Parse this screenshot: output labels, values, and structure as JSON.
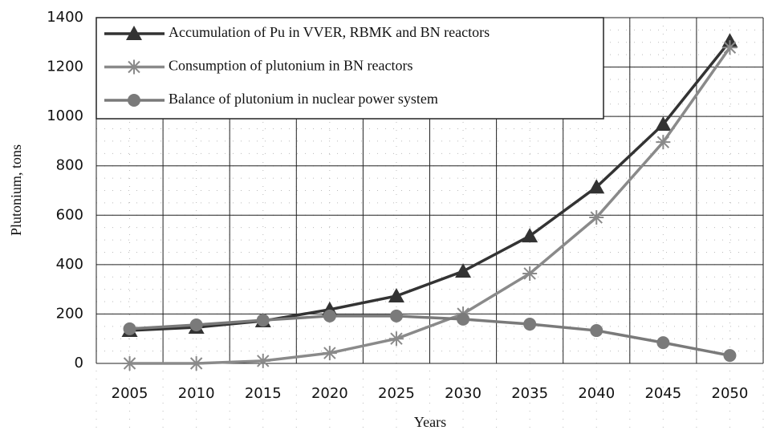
{
  "chart_data": {
    "type": "line",
    "x_label": "Years",
    "y_label": "Plutonium, tons",
    "categories": [
      "2005",
      "2010",
      "2015",
      "2020",
      "2025",
      "2030",
      "2035",
      "2040",
      "2045",
      "2050"
    ],
    "series": [
      {
        "name": "Accumulation of Pu in VVER, RBMK and BN reactors",
        "color": "#333333",
        "marker": "triangle",
        "values": [
          133,
          146,
          172,
          218,
          273,
          373,
          516,
          714,
          968,
          1305
        ]
      },
      {
        "name": "Consumption of plutonium in BN reactors",
        "color": "#8a8a8a",
        "marker": "star",
        "values": [
          0,
          0,
          10,
          42,
          100,
          201,
          364,
          591,
          896,
          1279
        ]
      },
      {
        "name": "Balance of plutonium in nuclear power system",
        "color": "#7a7a7a",
        "marker": "circle",
        "values": [
          140,
          156,
          175,
          192,
          192,
          179,
          159,
          133,
          84,
          32
        ]
      }
    ],
    "ylim": [
      0,
      1400
    ],
    "yticks": [
      0,
      200,
      400,
      600,
      800,
      1000,
      1200,
      1400
    ],
    "grid": true,
    "legend": "top-left"
  }
}
